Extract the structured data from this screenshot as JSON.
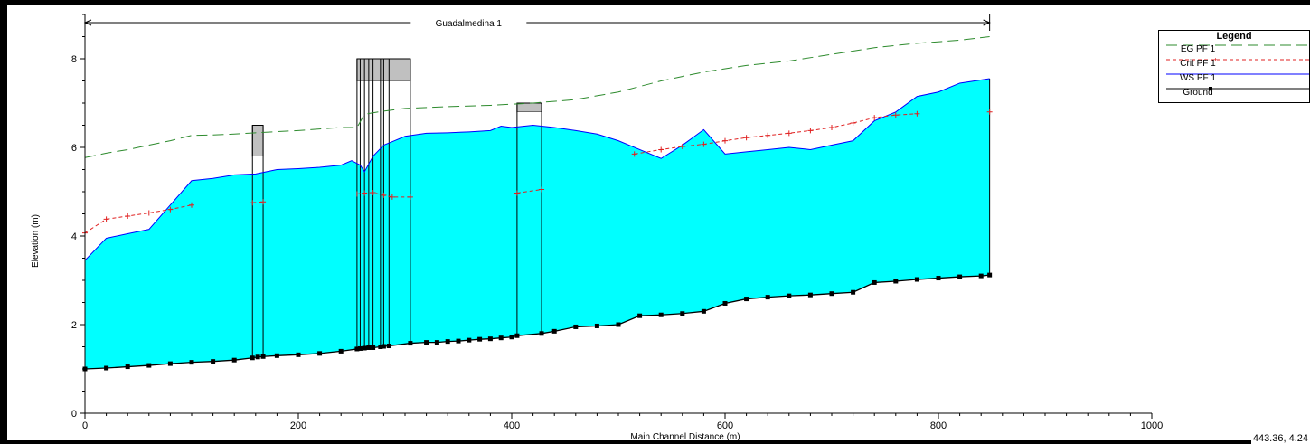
{
  "chart_data": {
    "type": "line",
    "title": "Guadalmedina 1",
    "xlabel": "Main Channel Distance (m)",
    "ylabel": "Elevation (m)",
    "xlim": [
      0,
      1000
    ],
    "ylim": [
      0,
      9
    ],
    "x_ticks": [
      0,
      200,
      400,
      600,
      800,
      1000
    ],
    "y_ticks": [
      0,
      2,
      4,
      6,
      8
    ],
    "grid": false,
    "reach_extent": [
      0,
      848
    ],
    "legend": {
      "title": "Legend",
      "placement": "top-right",
      "entries": [
        "EG  PF 1",
        "Crit  PF 1",
        "WS  PF 1",
        "Ground"
      ]
    },
    "series": [
      {
        "name": "EG  PF 1",
        "color": "#2e8b2e",
        "style": "long-dash",
        "points": [
          [
            0,
            5.77
          ],
          [
            20,
            5.87
          ],
          [
            40,
            5.95
          ],
          [
            60,
            6.05
          ],
          [
            80,
            6.15
          ],
          [
            100,
            6.27
          ],
          [
            120,
            6.28
          ],
          [
            140,
            6.3
          ],
          [
            160,
            6.33
          ],
          [
            200,
            6.38
          ],
          [
            240,
            6.45
          ],
          [
            255,
            6.45
          ],
          [
            262,
            6.75
          ],
          [
            280,
            6.82
          ],
          [
            300,
            6.88
          ],
          [
            340,
            6.92
          ],
          [
            380,
            6.95
          ],
          [
            420,
            7.0
          ],
          [
            460,
            7.08
          ],
          [
            500,
            7.25
          ],
          [
            540,
            7.5
          ],
          [
            580,
            7.7
          ],
          [
            620,
            7.85
          ],
          [
            660,
            7.95
          ],
          [
            700,
            8.1
          ],
          [
            740,
            8.25
          ],
          [
            780,
            8.35
          ],
          [
            820,
            8.42
          ],
          [
            848,
            8.5
          ]
        ]
      },
      {
        "name": "Crit  PF 1",
        "color": "#e02020",
        "style": "dashed",
        "segments": [
          [
            [
              0,
              4.07
            ],
            [
              20,
              4.38
            ],
            [
              40,
              4.45
            ],
            [
              60,
              4.52
            ],
            [
              80,
              4.6
            ],
            [
              100,
              4.7
            ]
          ],
          [
            [
              157,
              4.75
            ],
            [
              167,
              4.77
            ]
          ],
          [
            [
              255,
              4.95
            ],
            [
              262,
              4.97
            ],
            [
              270,
              4.98
            ],
            [
              280,
              4.92
            ],
            [
              288,
              4.88
            ],
            [
              305,
              4.88
            ]
          ],
          [
            [
              405,
              4.97
            ],
            [
              428,
              5.05
            ]
          ],
          [
            [
              515,
              5.85
            ],
            [
              540,
              5.95
            ],
            [
              560,
              6.02
            ],
            [
              580,
              6.07
            ],
            [
              600,
              6.15
            ],
            [
              620,
              6.22
            ],
            [
              640,
              6.27
            ],
            [
              660,
              6.32
            ],
            [
              680,
              6.38
            ],
            [
              700,
              6.45
            ],
            [
              720,
              6.55
            ],
            [
              740,
              6.67
            ],
            [
              760,
              6.73
            ],
            [
              780,
              6.76
            ]
          ],
          [
            [
              848,
              6.8
            ]
          ]
        ]
      },
      {
        "name": "WS  PF 1",
        "color": "#0000ff",
        "fill": "#00ffff",
        "points": [
          [
            0,
            3.45
          ],
          [
            20,
            3.95
          ],
          [
            40,
            4.05
          ],
          [
            60,
            4.15
          ],
          [
            80,
            4.7
          ],
          [
            100,
            5.25
          ],
          [
            120,
            5.3
          ],
          [
            140,
            5.38
          ],
          [
            160,
            5.4
          ],
          [
            180,
            5.5
          ],
          [
            200,
            5.52
          ],
          [
            220,
            5.55
          ],
          [
            240,
            5.6
          ],
          [
            250,
            5.7
          ],
          [
            258,
            5.6
          ],
          [
            262,
            5.45
          ],
          [
            270,
            5.8
          ],
          [
            280,
            6.05
          ],
          [
            290,
            6.15
          ],
          [
            300,
            6.25
          ],
          [
            320,
            6.32
          ],
          [
            340,
            6.33
          ],
          [
            360,
            6.35
          ],
          [
            380,
            6.38
          ],
          [
            390,
            6.48
          ],
          [
            400,
            6.45
          ],
          [
            420,
            6.5
          ],
          [
            440,
            6.45
          ],
          [
            460,
            6.38
          ],
          [
            480,
            6.3
          ],
          [
            500,
            6.15
          ],
          [
            520,
            5.95
          ],
          [
            540,
            5.75
          ],
          [
            560,
            6.05
          ],
          [
            580,
            6.4
          ],
          [
            600,
            5.85
          ],
          [
            620,
            5.9
          ],
          [
            640,
            5.95
          ],
          [
            660,
            6.0
          ],
          [
            680,
            5.95
          ],
          [
            700,
            6.05
          ],
          [
            720,
            6.15
          ],
          [
            740,
            6.6
          ],
          [
            760,
            6.8
          ],
          [
            780,
            7.15
          ],
          [
            800,
            7.25
          ],
          [
            820,
            7.45
          ],
          [
            848,
            7.55
          ]
        ]
      },
      {
        "name": "Ground",
        "color": "#000000",
        "marker": "square",
        "points": [
          [
            0,
            1.0
          ],
          [
            20,
            1.02
          ],
          [
            40,
            1.05
          ],
          [
            60,
            1.08
          ],
          [
            80,
            1.12
          ],
          [
            100,
            1.15
          ],
          [
            120,
            1.17
          ],
          [
            140,
            1.2
          ],
          [
            157,
            1.25
          ],
          [
            162,
            1.27
          ],
          [
            167,
            1.28
          ],
          [
            180,
            1.3
          ],
          [
            200,
            1.32
          ],
          [
            220,
            1.35
          ],
          [
            240,
            1.4
          ],
          [
            255,
            1.45
          ],
          [
            258,
            1.46
          ],
          [
            262,
            1.47
          ],
          [
            266,
            1.48
          ],
          [
            270,
            1.48
          ],
          [
            277,
            1.5
          ],
          [
            280,
            1.51
          ],
          [
            285,
            1.52
          ],
          [
            305,
            1.58
          ],
          [
            320,
            1.6
          ],
          [
            330,
            1.6
          ],
          [
            340,
            1.62
          ],
          [
            350,
            1.63
          ],
          [
            360,
            1.65
          ],
          [
            370,
            1.67
          ],
          [
            380,
            1.68
          ],
          [
            390,
            1.7
          ],
          [
            400,
            1.72
          ],
          [
            405,
            1.75
          ],
          [
            428,
            1.8
          ],
          [
            440,
            1.85
          ],
          [
            460,
            1.95
          ],
          [
            480,
            1.97
          ],
          [
            500,
            2.0
          ],
          [
            520,
            2.2
          ],
          [
            540,
            2.22
          ],
          [
            560,
            2.25
          ],
          [
            580,
            2.3
          ],
          [
            600,
            2.48
          ],
          [
            620,
            2.58
          ],
          [
            640,
            2.62
          ],
          [
            660,
            2.65
          ],
          [
            680,
            2.67
          ],
          [
            700,
            2.7
          ],
          [
            720,
            2.73
          ],
          [
            740,
            2.95
          ],
          [
            760,
            2.98
          ],
          [
            780,
            3.02
          ],
          [
            800,
            3.05
          ],
          [
            820,
            3.08
          ],
          [
            840,
            3.1
          ],
          [
            848,
            3.12
          ]
        ]
      }
    ],
    "structures": [
      {
        "x1": 157,
        "x2": 167,
        "top": 6.5,
        "low_chord": 5.8
      },
      {
        "x1": 255,
        "x2": 305,
        "top": 8.0,
        "low_chord": 7.5,
        "piers": [
          258,
          262,
          266,
          270,
          277,
          280,
          285
        ]
      },
      {
        "x1": 405,
        "x2": 428,
        "top": 7.0,
        "low_chord": 6.8
      }
    ]
  },
  "status": {
    "cursor_readout": "443.36, 4.24"
  }
}
